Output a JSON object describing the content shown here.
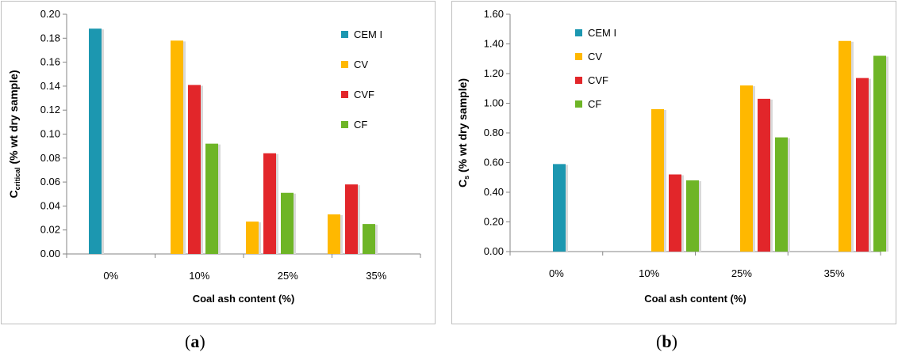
{
  "chart_data": [
    {
      "type": "bar",
      "panel": "(a)",
      "categories": [
        "0%",
        "10%",
        "25%",
        "35%"
      ],
      "series": [
        {
          "name": "CEM I",
          "color": "#1C97B0",
          "values": [
            0.188,
            null,
            null,
            null
          ]
        },
        {
          "name": "CV",
          "color": "#FFB800",
          "values": [
            null,
            0.178,
            0.027,
            0.033
          ]
        },
        {
          "name": "CVF",
          "color": "#E2262A",
          "values": [
            null,
            0.141,
            0.084,
            0.058
          ]
        },
        {
          "name": "CF",
          "color": "#6EB526",
          "values": [
            null,
            0.092,
            0.051,
            0.025
          ]
        }
      ],
      "ylim": [
        0,
        0.2
      ],
      "yticks": [
        "0.00",
        "0.02",
        "0.04",
        "0.06",
        "0.08",
        "0.10",
        "0.12",
        "0.14",
        "0.16",
        "0.18",
        "0.20"
      ],
      "xlabel": "Coal ash content (%)",
      "ylabel_main": "C",
      "ylabel_sub": "critical",
      "ylabel_rest": " (% wt dry sample)",
      "legend_position": "right",
      "grid": false
    },
    {
      "type": "bar",
      "panel": "(b)",
      "categories": [
        "0%",
        "10%",
        "25%",
        "35%"
      ],
      "series": [
        {
          "name": "CEM I",
          "color": "#1C97B0",
          "values": [
            0.59,
            null,
            null,
            null
          ]
        },
        {
          "name": "CV",
          "color": "#FFB800",
          "values": [
            null,
            0.96,
            1.12,
            1.42
          ]
        },
        {
          "name": "CVF",
          "color": "#E2262A",
          "values": [
            null,
            0.52,
            1.03,
            1.17
          ]
        },
        {
          "name": "CF",
          "color": "#6EB526",
          "values": [
            null,
            0.48,
            0.77,
            1.32
          ]
        }
      ],
      "ylim": [
        0,
        1.6
      ],
      "yticks": [
        "0.00",
        "0.20",
        "0.40",
        "0.60",
        "0.80",
        "1.00",
        "1.20",
        "1.40",
        "1.60"
      ],
      "xlabel": "Coal ash content (%)",
      "ylabel_main": "C",
      "ylabel_sub": "s",
      "ylabel_rest": " (% wt dry sample)",
      "legend_position": "top-left",
      "grid": false
    }
  ],
  "captions": {
    "a": "a",
    "b": "b"
  }
}
